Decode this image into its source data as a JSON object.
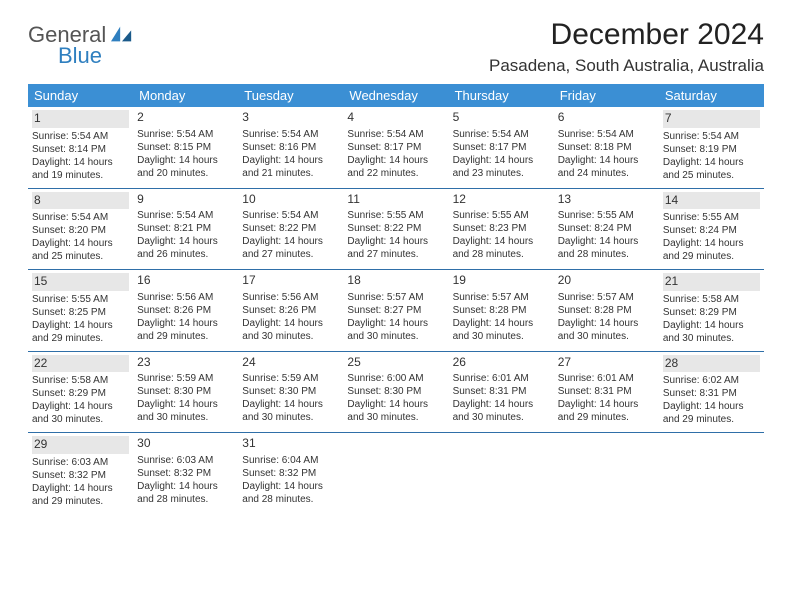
{
  "logo": {
    "text1": "General",
    "text2": "Blue"
  },
  "title": "December 2024",
  "location": "Pasadena, South Australia, Australia",
  "colors": {
    "header_bg": "#3b8fd4",
    "header_text": "#ffffff",
    "border": "#2f6fa8",
    "shade": "#e7e7e7",
    "logo_blue": "#2f7fbf"
  },
  "day_headers": [
    "Sunday",
    "Monday",
    "Tuesday",
    "Wednesday",
    "Thursday",
    "Friday",
    "Saturday"
  ],
  "weeks": [
    [
      {
        "n": "1",
        "shade": true,
        "sr": "Sunrise: 5:54 AM",
        "ss": "Sunset: 8:14 PM",
        "dl1": "Daylight: 14 hours",
        "dl2": "and 19 minutes."
      },
      {
        "n": "2",
        "shade": false,
        "sr": "Sunrise: 5:54 AM",
        "ss": "Sunset: 8:15 PM",
        "dl1": "Daylight: 14 hours",
        "dl2": "and 20 minutes."
      },
      {
        "n": "3",
        "shade": false,
        "sr": "Sunrise: 5:54 AM",
        "ss": "Sunset: 8:16 PM",
        "dl1": "Daylight: 14 hours",
        "dl2": "and 21 minutes."
      },
      {
        "n": "4",
        "shade": false,
        "sr": "Sunrise: 5:54 AM",
        "ss": "Sunset: 8:17 PM",
        "dl1": "Daylight: 14 hours",
        "dl2": "and 22 minutes."
      },
      {
        "n": "5",
        "shade": false,
        "sr": "Sunrise: 5:54 AM",
        "ss": "Sunset: 8:17 PM",
        "dl1": "Daylight: 14 hours",
        "dl2": "and 23 minutes."
      },
      {
        "n": "6",
        "shade": false,
        "sr": "Sunrise: 5:54 AM",
        "ss": "Sunset: 8:18 PM",
        "dl1": "Daylight: 14 hours",
        "dl2": "and 24 minutes."
      },
      {
        "n": "7",
        "shade": true,
        "sr": "Sunrise: 5:54 AM",
        "ss": "Sunset: 8:19 PM",
        "dl1": "Daylight: 14 hours",
        "dl2": "and 25 minutes."
      }
    ],
    [
      {
        "n": "8",
        "shade": true,
        "sr": "Sunrise: 5:54 AM",
        "ss": "Sunset: 8:20 PM",
        "dl1": "Daylight: 14 hours",
        "dl2": "and 25 minutes."
      },
      {
        "n": "9",
        "shade": false,
        "sr": "Sunrise: 5:54 AM",
        "ss": "Sunset: 8:21 PM",
        "dl1": "Daylight: 14 hours",
        "dl2": "and 26 minutes."
      },
      {
        "n": "10",
        "shade": false,
        "sr": "Sunrise: 5:54 AM",
        "ss": "Sunset: 8:22 PM",
        "dl1": "Daylight: 14 hours",
        "dl2": "and 27 minutes."
      },
      {
        "n": "11",
        "shade": false,
        "sr": "Sunrise: 5:55 AM",
        "ss": "Sunset: 8:22 PM",
        "dl1": "Daylight: 14 hours",
        "dl2": "and 27 minutes."
      },
      {
        "n": "12",
        "shade": false,
        "sr": "Sunrise: 5:55 AM",
        "ss": "Sunset: 8:23 PM",
        "dl1": "Daylight: 14 hours",
        "dl2": "and 28 minutes."
      },
      {
        "n": "13",
        "shade": false,
        "sr": "Sunrise: 5:55 AM",
        "ss": "Sunset: 8:24 PM",
        "dl1": "Daylight: 14 hours",
        "dl2": "and 28 minutes."
      },
      {
        "n": "14",
        "shade": true,
        "sr": "Sunrise: 5:55 AM",
        "ss": "Sunset: 8:24 PM",
        "dl1": "Daylight: 14 hours",
        "dl2": "and 29 minutes."
      }
    ],
    [
      {
        "n": "15",
        "shade": true,
        "sr": "Sunrise: 5:55 AM",
        "ss": "Sunset: 8:25 PM",
        "dl1": "Daylight: 14 hours",
        "dl2": "and 29 minutes."
      },
      {
        "n": "16",
        "shade": false,
        "sr": "Sunrise: 5:56 AM",
        "ss": "Sunset: 8:26 PM",
        "dl1": "Daylight: 14 hours",
        "dl2": "and 29 minutes."
      },
      {
        "n": "17",
        "shade": false,
        "sr": "Sunrise: 5:56 AM",
        "ss": "Sunset: 8:26 PM",
        "dl1": "Daylight: 14 hours",
        "dl2": "and 30 minutes."
      },
      {
        "n": "18",
        "shade": false,
        "sr": "Sunrise: 5:57 AM",
        "ss": "Sunset: 8:27 PM",
        "dl1": "Daylight: 14 hours",
        "dl2": "and 30 minutes."
      },
      {
        "n": "19",
        "shade": false,
        "sr": "Sunrise: 5:57 AM",
        "ss": "Sunset: 8:28 PM",
        "dl1": "Daylight: 14 hours",
        "dl2": "and 30 minutes."
      },
      {
        "n": "20",
        "shade": false,
        "sr": "Sunrise: 5:57 AM",
        "ss": "Sunset: 8:28 PM",
        "dl1": "Daylight: 14 hours",
        "dl2": "and 30 minutes."
      },
      {
        "n": "21",
        "shade": true,
        "sr": "Sunrise: 5:58 AM",
        "ss": "Sunset: 8:29 PM",
        "dl1": "Daylight: 14 hours",
        "dl2": "and 30 minutes."
      }
    ],
    [
      {
        "n": "22",
        "shade": true,
        "sr": "Sunrise: 5:58 AM",
        "ss": "Sunset: 8:29 PM",
        "dl1": "Daylight: 14 hours",
        "dl2": "and 30 minutes."
      },
      {
        "n": "23",
        "shade": false,
        "sr": "Sunrise: 5:59 AM",
        "ss": "Sunset: 8:30 PM",
        "dl1": "Daylight: 14 hours",
        "dl2": "and 30 minutes."
      },
      {
        "n": "24",
        "shade": false,
        "sr": "Sunrise: 5:59 AM",
        "ss": "Sunset: 8:30 PM",
        "dl1": "Daylight: 14 hours",
        "dl2": "and 30 minutes."
      },
      {
        "n": "25",
        "shade": false,
        "sr": "Sunrise: 6:00 AM",
        "ss": "Sunset: 8:30 PM",
        "dl1": "Daylight: 14 hours",
        "dl2": "and 30 minutes."
      },
      {
        "n": "26",
        "shade": false,
        "sr": "Sunrise: 6:01 AM",
        "ss": "Sunset: 8:31 PM",
        "dl1": "Daylight: 14 hours",
        "dl2": "and 30 minutes."
      },
      {
        "n": "27",
        "shade": false,
        "sr": "Sunrise: 6:01 AM",
        "ss": "Sunset: 8:31 PM",
        "dl1": "Daylight: 14 hours",
        "dl2": "and 29 minutes."
      },
      {
        "n": "28",
        "shade": true,
        "sr": "Sunrise: 6:02 AM",
        "ss": "Sunset: 8:31 PM",
        "dl1": "Daylight: 14 hours",
        "dl2": "and 29 minutes."
      }
    ],
    [
      {
        "n": "29",
        "shade": true,
        "sr": "Sunrise: 6:03 AM",
        "ss": "Sunset: 8:32 PM",
        "dl1": "Daylight: 14 hours",
        "dl2": "and 29 minutes."
      },
      {
        "n": "30",
        "shade": false,
        "sr": "Sunrise: 6:03 AM",
        "ss": "Sunset: 8:32 PM",
        "dl1": "Daylight: 14 hours",
        "dl2": "and 28 minutes."
      },
      {
        "n": "31",
        "shade": false,
        "sr": "Sunrise: 6:04 AM",
        "ss": "Sunset: 8:32 PM",
        "dl1": "Daylight: 14 hours",
        "dl2": "and 28 minutes."
      },
      null,
      null,
      null,
      null
    ]
  ]
}
